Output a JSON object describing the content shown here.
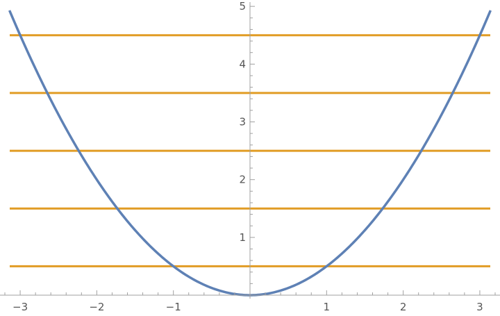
{
  "chart_data": {
    "type": "line",
    "title": "",
    "xlabel": "",
    "ylabel": "",
    "xlim": [
      -3.2,
      3.2
    ],
    "ylim": [
      0,
      5.05
    ],
    "grid": false,
    "legend": "none",
    "x_ticks": [
      {
        "value": -3,
        "label": "−3"
      },
      {
        "value": -2,
        "label": "−2"
      },
      {
        "value": -1,
        "label": "−1"
      },
      {
        "value": 1,
        "label": "1"
      },
      {
        "value": 2,
        "label": "2"
      },
      {
        "value": 3,
        "label": "3"
      }
    ],
    "y_ticks": [
      {
        "value": 1,
        "label": "1"
      },
      {
        "value": 2,
        "label": "2"
      },
      {
        "value": 3,
        "label": "3"
      },
      {
        "value": 4,
        "label": "4"
      },
      {
        "value": 5,
        "label": "5"
      }
    ],
    "series": [
      {
        "kind": "curve",
        "color": "#5e81b5",
        "function": "x^2/2",
        "x": [
          -3.14,
          -2.75,
          -2.5,
          -2.25,
          -2.0,
          -1.75,
          -1.5,
          -1.25,
          -1.0,
          -0.75,
          -0.5,
          -0.25,
          0,
          0.25,
          0.5,
          0.75,
          1.0,
          1.25,
          1.5,
          1.75,
          2.0,
          2.25,
          2.5,
          2.75,
          3.14
        ],
        "y": [
          4.93,
          3.78,
          3.125,
          2.53,
          2.0,
          1.53,
          1.125,
          0.78,
          0.5,
          0.28,
          0.125,
          0.03,
          0,
          0.03,
          0.125,
          0.28,
          0.5,
          0.78,
          1.125,
          1.53,
          2.0,
          2.53,
          3.125,
          3.78,
          4.93
        ]
      },
      {
        "kind": "hline",
        "color": "#e19c24",
        "y": 0.5
      },
      {
        "kind": "hline",
        "color": "#e19c24",
        "y": 1.5
      },
      {
        "kind": "hline",
        "color": "#e19c24",
        "y": 2.5
      },
      {
        "kind": "hline",
        "color": "#e19c24",
        "y": 3.5
      },
      {
        "kind": "hline",
        "color": "#e19c24",
        "y": 4.5
      }
    ]
  }
}
